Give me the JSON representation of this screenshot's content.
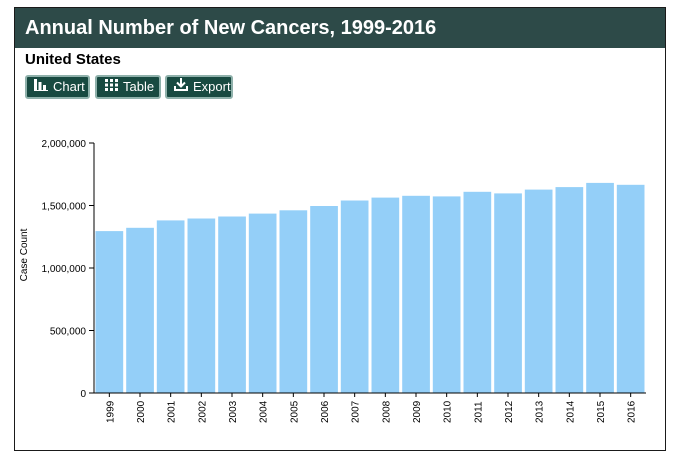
{
  "header": {
    "title": "Annual Number of New Cancers, 1999-2016",
    "subtitle": "United States"
  },
  "toolbar": {
    "chart_label": "Chart",
    "table_label": "Table",
    "export_label": "Export"
  },
  "icons": [
    "bar-chart-icon",
    "table-grid-icon",
    "download-icon"
  ],
  "colors": {
    "title_bar": "#2d4a48",
    "button": "#184a41",
    "bar": "#94cff8"
  },
  "chart_data": {
    "type": "bar",
    "title": "Annual Number of New Cancers, 1999-2016",
    "subtitle": "United States",
    "xlabel": "",
    "ylabel": "Case Count",
    "ylim": [
      0,
      2000000
    ],
    "yticks": [
      0,
      500000,
      1000000,
      1500000,
      2000000
    ],
    "ytick_labels": [
      "0",
      "500,000",
      "1,000,000",
      "1,500,000",
      "2,000,000"
    ],
    "grid": false,
    "categories": [
      "1999",
      "2000",
      "2001",
      "2002",
      "2003",
      "2004",
      "2005",
      "2006",
      "2007",
      "2008",
      "2009",
      "2010",
      "2011",
      "2012",
      "2013",
      "2014",
      "2015",
      "2016"
    ],
    "values": [
      1295000,
      1322000,
      1381000,
      1396000,
      1412000,
      1435000,
      1462000,
      1496000,
      1540000,
      1563000,
      1578000,
      1573000,
      1610000,
      1597000,
      1627000,
      1647000,
      1681000,
      1666000
    ]
  }
}
